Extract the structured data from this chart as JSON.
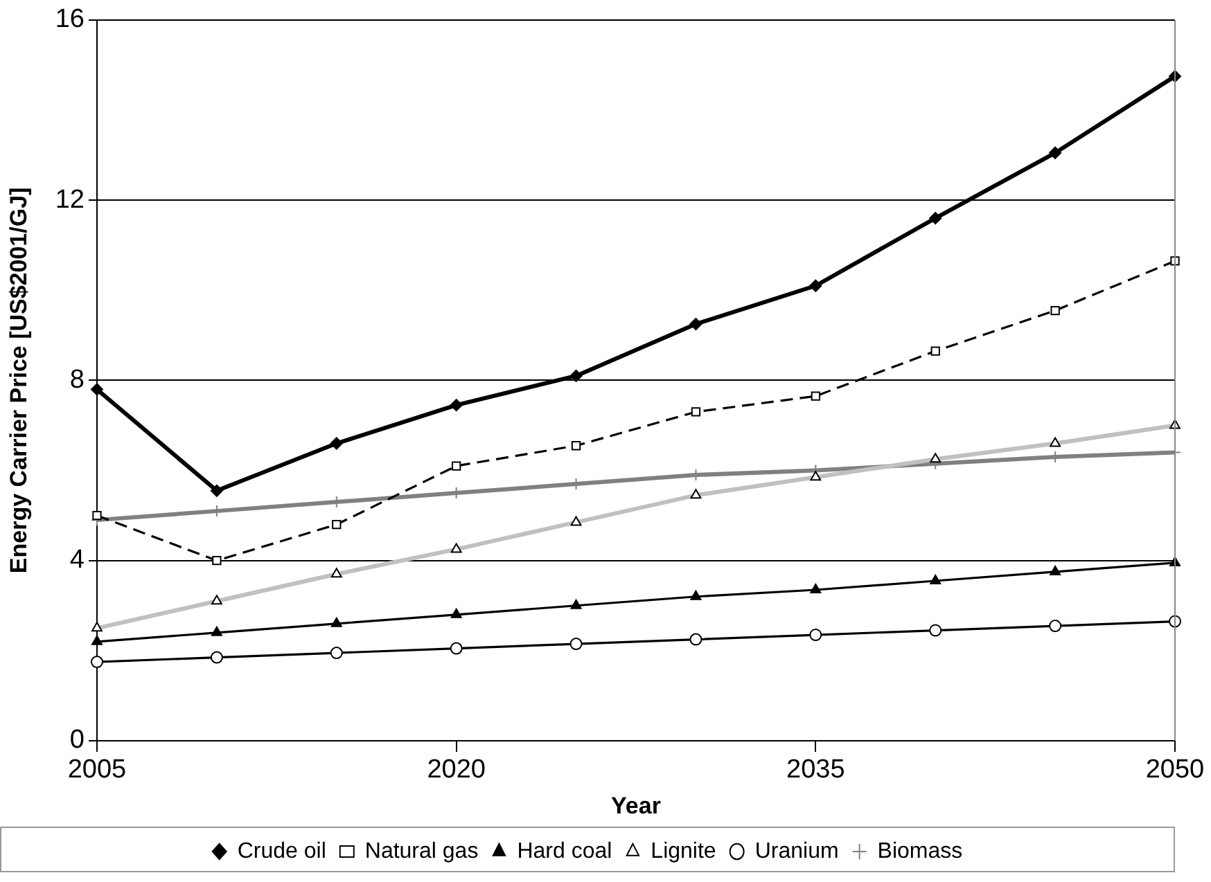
{
  "chart_data": {
    "type": "line",
    "xlabel": "Year",
    "ylabel": "Energy Carrier Price [US$2001/GJ]",
    "x": [
      2005,
      2010,
      2015,
      2020,
      2025,
      2030,
      2035,
      2040,
      2045,
      2050
    ],
    "xlim": [
      2005,
      2050
    ],
    "xticks": [
      2005,
      2020,
      2035,
      2050
    ],
    "ylim": [
      0,
      16
    ],
    "yticks": [
      0,
      4,
      8,
      12,
      16
    ],
    "grid": "y",
    "legend": "bottom",
    "series": [
      {
        "name": "Crude oil",
        "color": "#000000",
        "marker": "diamond",
        "line_style": "solid",
        "values": [
          7.8,
          5.55,
          6.6,
          7.45,
          8.1,
          9.25,
          10.1,
          11.6,
          13.05,
          14.75
        ]
      },
      {
        "name": "Natural gas",
        "color": "#000000",
        "marker": "square",
        "line_style": "dashed",
        "values": [
          5.0,
          4.0,
          4.8,
          6.1,
          6.55,
          7.3,
          7.65,
          8.65,
          9.55,
          10.65
        ]
      },
      {
        "name": "Hard coal",
        "color": "#000000",
        "marker": "triangle",
        "line_style": "solid",
        "values": [
          2.2,
          2.4,
          2.6,
          2.8,
          3.0,
          3.2,
          3.35,
          3.55,
          3.75,
          3.95
        ]
      },
      {
        "name": "Lignite",
        "color": "#c0c0c0",
        "marker": "triangle",
        "line_style": "solid",
        "values": [
          2.5,
          3.1,
          3.7,
          4.25,
          4.85,
          5.45,
          5.85,
          6.25,
          6.6,
          7.0
        ]
      },
      {
        "name": "Uranium",
        "color": "#000000",
        "marker": "circle",
        "line_style": "solid",
        "values": [
          1.75,
          1.85,
          1.95,
          2.05,
          2.15,
          2.25,
          2.35,
          2.45,
          2.55,
          2.65
        ]
      },
      {
        "name": "Biomass",
        "color": "#808080",
        "marker": "cross",
        "line_style": "solid",
        "values": [
          4.9,
          5.1,
          5.3,
          5.5,
          5.7,
          5.9,
          6.0,
          6.15,
          6.3,
          6.4
        ]
      }
    ]
  }
}
